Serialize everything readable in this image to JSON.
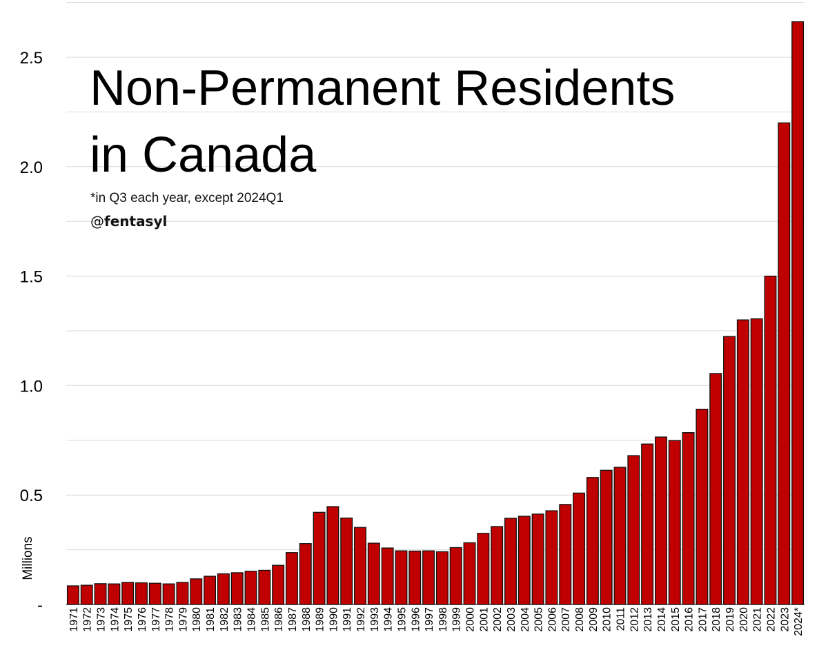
{
  "title_line1": "Non-Permanent Residents",
  "title_line2": "in Canada",
  "note": "*in Q3 each year, except 2024Q1",
  "credit_at": "@",
  "credit_handle": "fentasyl",
  "chart_data": {
    "type": "bar",
    "title": "Non-Permanent Residents in Canada",
    "xlabel": "",
    "ylabel": "Millions",
    "ylim": [
      0,
      2.75
    ],
    "yticks": [
      0,
      0.5,
      1.0,
      1.5,
      2.0,
      2.5
    ],
    "ytick_labels": [
      "-",
      "0.5",
      "1.0",
      "1.5",
      "2.0",
      "2.5"
    ],
    "categories": [
      "1971",
      "1972",
      "1973",
      "1974",
      "1975",
      "1976",
      "1977",
      "1978",
      "1979",
      "1980",
      "1981",
      "1982",
      "1983",
      "1984",
      "1985",
      "1986",
      "1987",
      "1988",
      "1989",
      "1990",
      "1991",
      "1992",
      "1993",
      "1994",
      "1995",
      "1996",
      "1997",
      "1998",
      "1999",
      "2000",
      "2001",
      "2002",
      "2003",
      "2004",
      "2005",
      "2006",
      "2007",
      "2008",
      "2009",
      "2010",
      "2011",
      "2012",
      "2013",
      "2014",
      "2015",
      "2016",
      "2017",
      "2018",
      "2019",
      "2020",
      "2021",
      "2022",
      "2023",
      "2024*"
    ],
    "values": [
      0.085,
      0.088,
      0.095,
      0.094,
      0.101,
      0.099,
      0.097,
      0.094,
      0.101,
      0.117,
      0.129,
      0.14,
      0.145,
      0.152,
      0.156,
      0.179,
      0.237,
      0.278,
      0.421,
      0.447,
      0.395,
      0.352,
      0.28,
      0.258,
      0.245,
      0.244,
      0.245,
      0.241,
      0.26,
      0.282,
      0.325,
      0.356,
      0.394,
      0.403,
      0.413,
      0.428,
      0.457,
      0.509,
      0.58,
      0.613,
      0.627,
      0.68,
      0.733,
      0.765,
      0.749,
      0.785,
      0.892,
      1.055,
      1.224,
      1.3,
      1.305,
      1.5,
      2.2,
      2.662
    ],
    "colors": {
      "bar": "#c00000",
      "bar_edge": "#111111",
      "grid": "#d9d9d9",
      "text": "#000000"
    },
    "grid": true
  }
}
